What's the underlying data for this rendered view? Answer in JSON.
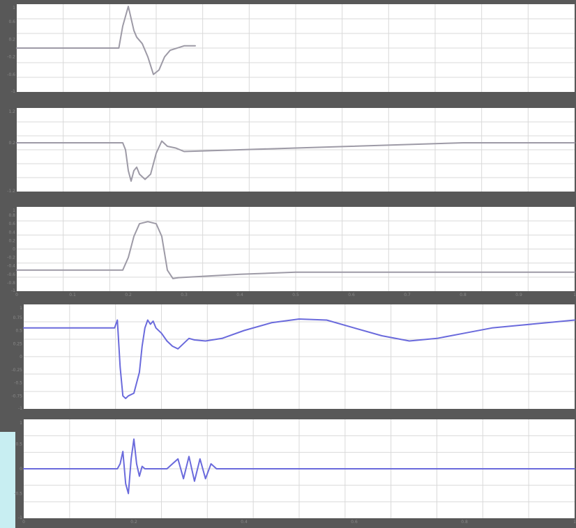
{
  "colors": {
    "frame": "#585858",
    "plot_background": "#ffffff",
    "grid": "#d9d9d9",
    "trace_gray": "#9d9aa6",
    "trace_blue": "#6a6adc",
    "edge_accent": "#c8eef2"
  },
  "chart_data": [
    {
      "type": "line",
      "title": "",
      "xlabel": "",
      "ylabel": "",
      "xlim": [
        0,
        1
      ],
      "ylim": [
        -1,
        1
      ],
      "grid": true,
      "y_ticks": [
        -1,
        -0.6,
        -0.2,
        0.2,
        0.6,
        1
      ],
      "series": [
        {
          "color": "gray",
          "x": [
            0,
            0.183,
            0.19,
            0.2,
            0.21,
            0.215,
            0.225,
            0.235,
            0.245,
            0.255,
            0.265,
            0.275,
            0.3,
            0.32
          ],
          "y": [
            0,
            0,
            0.5,
            0.95,
            0.4,
            0.25,
            0.1,
            -0.2,
            -0.6,
            -0.5,
            -0.2,
            -0.05,
            0.05,
            0.05
          ]
        }
      ]
    },
    {
      "type": "line",
      "title": "",
      "xlabel": "",
      "ylabel": "",
      "xlim": [
        0,
        1
      ],
      "ylim": [
        -1.2,
        1.2
      ],
      "grid": true,
      "y_ticks": [
        -1.2,
        0.2,
        1.2
      ],
      "series": [
        {
          "color": "gray",
          "x": [
            0,
            0.19,
            0.195,
            0.2,
            0.205,
            0.21,
            0.215,
            0.22,
            0.23,
            0.24,
            0.25,
            0.26,
            0.27,
            0.285,
            0.3,
            0.4,
            0.5,
            0.6,
            0.7,
            0.8,
            1
          ],
          "y": [
            0.2,
            0.2,
            0,
            -0.6,
            -0.9,
            -0.6,
            -0.5,
            -0.7,
            -0.85,
            -0.7,
            -0.1,
            0.25,
            0.1,
            0.05,
            -0.05,
            0.0,
            0.05,
            0.1,
            0.15,
            0.2,
            0.2
          ]
        }
      ]
    },
    {
      "type": "line",
      "title": "",
      "xlabel": "",
      "ylabel": "",
      "xlim": [
        0,
        1
      ],
      "ylim": [
        -1,
        1
      ],
      "grid": true,
      "x_ticks": [
        0,
        0.1,
        0.2,
        0.3,
        0.4,
        0.5,
        0.6,
        0.7,
        0.8,
        0.9,
        1
      ],
      "y_ticks": [
        -1,
        -0.8,
        -0.6,
        -0.4,
        -0.2,
        0,
        0.2,
        0.4,
        0.6,
        0.8,
        1
      ],
      "series": [
        {
          "color": "gray",
          "x": [
            0,
            0.19,
            0.2,
            0.21,
            0.22,
            0.235,
            0.25,
            0.26,
            0.27,
            0.28,
            0.29,
            0.4,
            0.5,
            0.6,
            0.7,
            0.8,
            1
          ],
          "y": [
            -0.5,
            -0.5,
            -0.2,
            0.3,
            0.6,
            0.65,
            0.6,
            0.3,
            -0.5,
            -0.7,
            -0.68,
            -0.6,
            -0.55,
            -0.55,
            -0.55,
            -0.55,
            -0.55
          ]
        }
      ]
    },
    {
      "type": "line",
      "title": "",
      "xlabel": "",
      "ylabel": "",
      "xlim": [
        0,
        1
      ],
      "ylim": [
        -1,
        1
      ],
      "grid": true,
      "y_ticks": [
        -1,
        -0.75,
        -0.5,
        -0.25,
        0,
        0.25,
        0.5,
        0.75,
        1
      ],
      "series": [
        {
          "color": "blue",
          "x": [
            0,
            0.165,
            0.17,
            0.175,
            0.18,
            0.185,
            0.19,
            0.2,
            0.21,
            0.215,
            0.22,
            0.225,
            0.23,
            0.235,
            0.24,
            0.25,
            0.26,
            0.27,
            0.28,
            0.29,
            0.3,
            0.31,
            0.33,
            0.36,
            0.4,
            0.45,
            0.5,
            0.55,
            0.6,
            0.65,
            0.7,
            0.75,
            0.8,
            0.85,
            0.9,
            0.95,
            1
          ],
          "y": [
            0.55,
            0.55,
            0.7,
            -0.2,
            -0.75,
            -0.8,
            -0.75,
            -0.7,
            -0.3,
            0.2,
            0.55,
            0.7,
            0.62,
            0.68,
            0.55,
            0.45,
            0.3,
            0.2,
            0.15,
            0.25,
            0.35,
            0.32,
            0.3,
            0.35,
            0.5,
            0.65,
            0.72,
            0.7,
            0.55,
            0.4,
            0.3,
            0.35,
            0.45,
            0.55,
            0.6,
            0.65,
            0.7
          ]
        }
      ]
    },
    {
      "type": "line",
      "title": "",
      "xlabel": "",
      "ylabel": "",
      "xlim": [
        0,
        1
      ],
      "ylim": [
        -1,
        1
      ],
      "grid": true,
      "x_ticks": [
        0,
        0.2,
        0.4,
        0.6,
        0.8,
        1
      ],
      "y_ticks": [
        -1,
        -0.5,
        0,
        0.5,
        1
      ],
      "series": [
        {
          "color": "blue",
          "x": [
            0,
            0.17,
            0.175,
            0.18,
            0.185,
            0.19,
            0.195,
            0.2,
            0.205,
            0.21,
            0.215,
            0.22,
            0.225,
            0.23,
            0.24,
            0.26,
            0.28,
            0.29,
            0.3,
            0.31,
            0.32,
            0.33,
            0.34,
            0.35,
            1
          ],
          "y": [
            0,
            0,
            0.1,
            0.35,
            -0.3,
            -0.5,
            0.2,
            0.6,
            0.1,
            -0.15,
            0.05,
            0,
            0,
            0,
            0,
            0,
            0.2,
            -0.2,
            0.25,
            -0.25,
            0.2,
            -0.2,
            0.1,
            0,
            0
          ]
        }
      ]
    }
  ]
}
